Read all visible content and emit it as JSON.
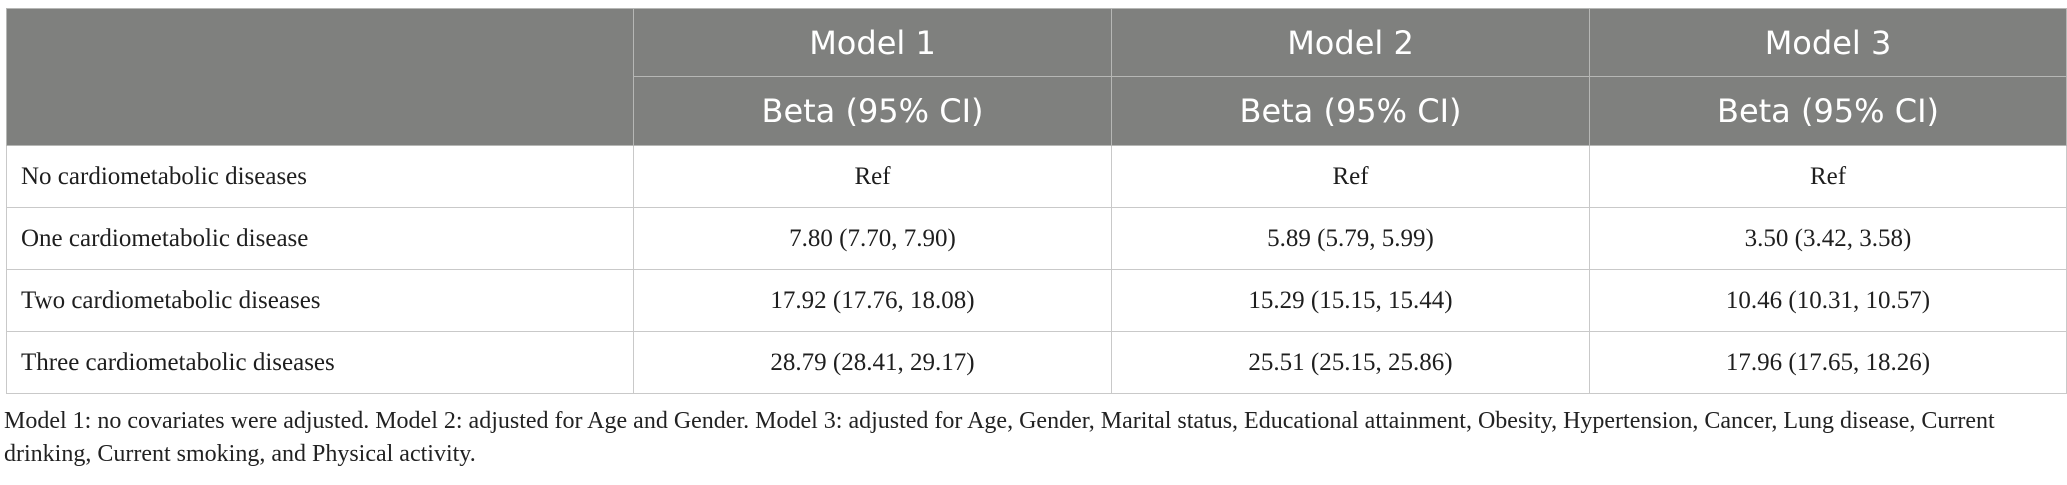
{
  "table": {
    "header": {
      "models": [
        "Model 1",
        "Model 2",
        "Model 3"
      ],
      "subheaders": [
        "Beta (95% CI)",
        "Beta (95% CI)",
        "Beta (95% CI)"
      ]
    },
    "rows": [
      {
        "label": "No cardiometabolic diseases",
        "values": [
          "Ref",
          "Ref",
          "Ref"
        ]
      },
      {
        "label": "One cardiometabolic disease",
        "values": [
          "7.80 (7.70, 7.90)",
          "5.89 (5.79, 5.99)",
          "3.50 (3.42, 3.58)"
        ]
      },
      {
        "label": "Two cardiometabolic diseases",
        "values": [
          "17.92 (17.76, 18.08)",
          "15.29 (15.15, 15.44)",
          "10.46 (10.31, 10.57)"
        ]
      },
      {
        "label": "Three cardiometabolic diseases",
        "values": [
          "28.79 (28.41, 29.17)",
          "25.51 (25.15, 25.86)",
          "17.96 (17.65, 18.26)"
        ]
      }
    ]
  },
  "footnote": "Model 1: no covariates were adjusted. Model 2: adjusted for Age and Gender. Model 3: adjusted for Age, Gender, Marital status, Educational attainment, Obesity, Hypertension, Cancer, Lung disease, Current drinking, Current smoking, and Physical activity.",
  "colors": {
    "header_bg": "#7f807e",
    "header_text": "#ffffff",
    "border": "#c9c9c9"
  }
}
